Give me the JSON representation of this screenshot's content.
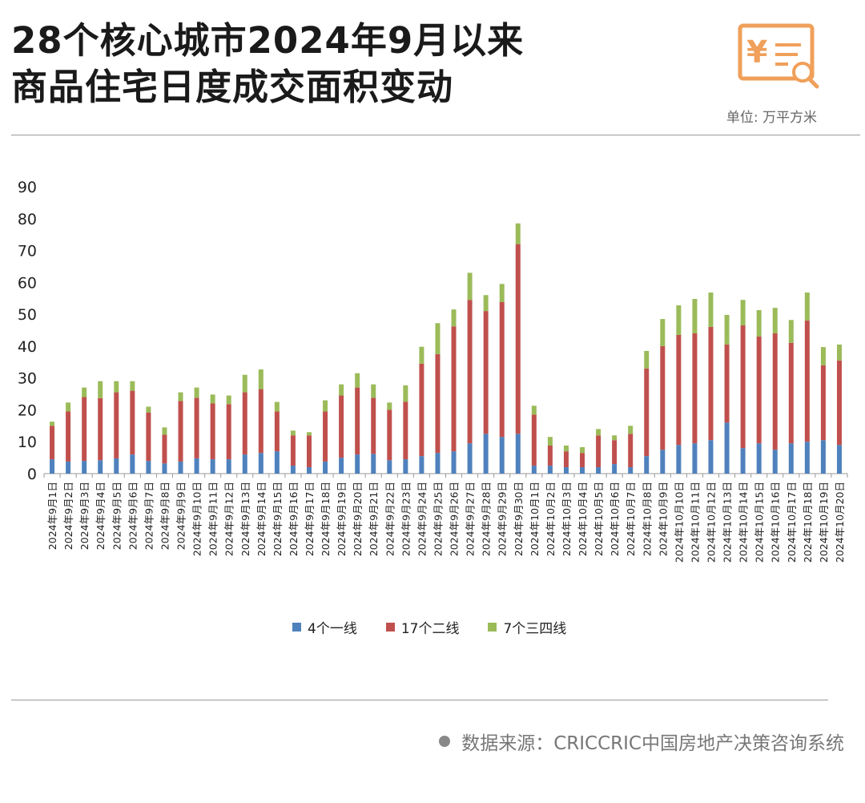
{
  "title": {
    "line1": "28个核心城市2024年9月以来",
    "line2": "商品住宅日度成交面积变动"
  },
  "unit": "单位: 万平方米",
  "source": "数据来源：CRICCRIC中国房地产决策咨询系统",
  "colors": {
    "tier1": "#4f81bd",
    "tier2": "#c0504d",
    "tier3": "#9bbb59",
    "text": "#1a1a1a",
    "icon": "#f0a05a"
  },
  "icon": "yuan-receipt-icon",
  "legend": [
    {
      "key": "tier1",
      "label": "4个一线"
    },
    {
      "key": "tier2",
      "label": "17个二线"
    },
    {
      "key": "tier3",
      "label": "7个三四线"
    }
  ],
  "chart_data": {
    "type": "bar",
    "stacked": true,
    "ylim": [
      0,
      90
    ],
    "yticks": [
      0,
      10,
      20,
      30,
      40,
      50,
      60,
      70,
      80,
      90
    ],
    "grid": false,
    "legend_position": "bottom",
    "categories": [
      "2024年9月1日",
      "2024年9月2日",
      "2024年9月3日",
      "2024年9月4日",
      "2024年9月5日",
      "2024年9月6日",
      "2024年9月7日",
      "2024年9月8日",
      "2024年9月9日",
      "2024年9月10日",
      "2024年9月11日",
      "2024年9月12日",
      "2024年9月13日",
      "2024年9月14日",
      "2024年9月15日",
      "2024年9月16日",
      "2024年9月17日",
      "2024年9月18日",
      "2024年9月19日",
      "2024年9月20日",
      "2024年9月21日",
      "2024年9月22日",
      "2024年9月23日",
      "2024年9月24日",
      "2024年9月25日",
      "2024年9月26日",
      "2024年9月27日",
      "2024年9月28日",
      "2024年9月29日",
      "2024年9月30日",
      "2024年10月1日",
      "2024年10月2日",
      "2024年10月3日",
      "2024年10月4日",
      "2024年10月5日",
      "2024年10月6日",
      "2024年10月7日",
      "2024年10月8日",
      "2024年10月9日",
      "2024年10月10日",
      "2024年10月11日",
      "2024年10月12日",
      "2024年10月13日",
      "2024年10月14日",
      "2024年10月15日",
      "2024年10月16日",
      "2024年10月17日",
      "2024年10月18日",
      "2024年10月19日",
      "2024年10月20日"
    ],
    "series": [
      {
        "name": "4个一线",
        "values": [
          4.5,
          3.8,
          4,
          4.2,
          4.8,
          6,
          4,
          3.2,
          3.8,
          4.8,
          4.5,
          4.5,
          6,
          6.5,
          7,
          2.5,
          2,
          3.8,
          5,
          6,
          6.2,
          4.2,
          4.5,
          5.5,
          6.5,
          7,
          9.5,
          12.5,
          11.5,
          12.5,
          2.5,
          2.5,
          2,
          2,
          2,
          3,
          2,
          5.5,
          7.5,
          9,
          9.5,
          10.5,
          16,
          8,
          9.5,
          7.5,
          9.5,
          10,
          10.5,
          9
        ]
      },
      {
        "name": "17个二线",
        "values": [
          10.5,
          15.7,
          20,
          19.5,
          20.7,
          20,
          15.2,
          9,
          19,
          19,
          17.5,
          17.3,
          19.5,
          20,
          12.5,
          9.5,
          10,
          15.7,
          19.5,
          21,
          17.6,
          15.8,
          18,
          29,
          31,
          39.2,
          45,
          38.5,
          42.3,
          59.5,
          16,
          6.3,
          5,
          4.5,
          10,
          7.5,
          10.5,
          27.5,
          32.5,
          34.5,
          34.5,
          35.5,
          24.5,
          38.5,
          33.5,
          36.5,
          31.5,
          38,
          23.5,
          26.5
        ]
      },
      {
        "name": "7个三四线",
        "values": [
          1.3,
          2.8,
          3,
          5.3,
          3.5,
          3,
          1.8,
          2.3,
          2.7,
          3.2,
          2.8,
          2.7,
          5.5,
          6.2,
          3,
          1.5,
          1,
          3.5,
          3.5,
          4.5,
          4.2,
          2.3,
          5.2,
          5.3,
          9.7,
          5.3,
          8.5,
          5,
          5.7,
          6.5,
          2.8,
          2.7,
          1.8,
          1.8,
          2,
          1.5,
          2.5,
          5.5,
          8.5,
          9.3,
          10.8,
          10.8,
          9.3,
          8,
          8.3,
          8,
          7.2,
          8.8,
          5.7,
          5
        ]
      }
    ]
  }
}
